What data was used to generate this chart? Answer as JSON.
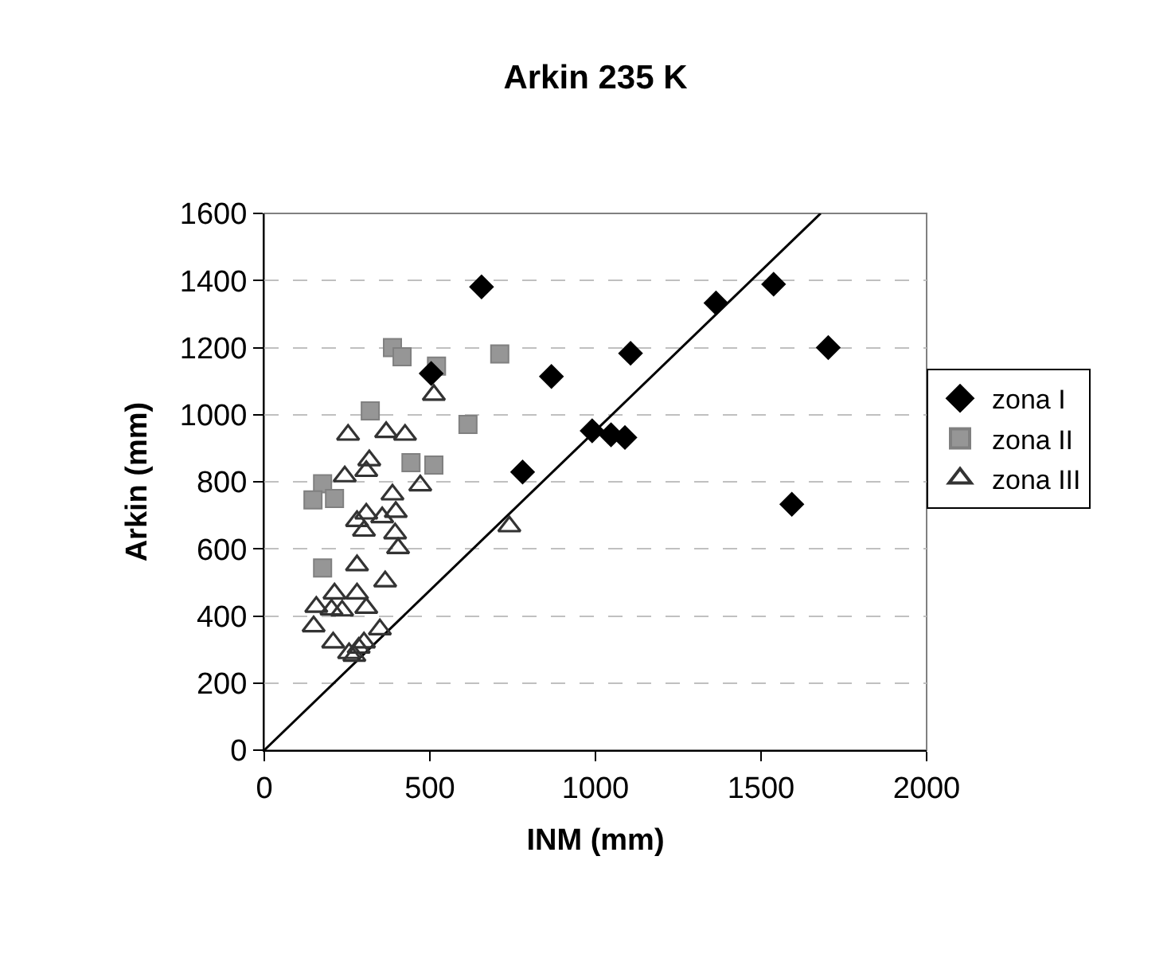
{
  "chart_data": {
    "type": "scatter",
    "title": "Arkin 235 K",
    "xlabel": "INM (mm)",
    "ylabel": "Arkin (mm)",
    "xlim": [
      0,
      2000
    ],
    "xticks": [
      0,
      500,
      1000,
      1500,
      2000
    ],
    "ylim": [
      0,
      1600
    ],
    "yticks": [
      0,
      200,
      400,
      600,
      800,
      1000,
      1200,
      1400,
      1600
    ],
    "grid": "y",
    "legend": "right",
    "series": [
      {
        "name": "zona I",
        "color": "#000000",
        "marker": "diamond",
        "x": [
          867,
          1106,
          990,
          1047,
          1089,
          1364,
          1538,
          1703,
          1593,
          656,
          504,
          780
        ],
        "values": [
          1114,
          1183,
          952,
          940,
          932,
          1333,
          1389,
          1200,
          733,
          1381,
          1123,
          829
        ]
      },
      {
        "name": "zona II",
        "color": "#969696",
        "marker": "square",
        "x": [
          387,
          416,
          520,
          711,
          320,
          615,
          443,
          512,
          176,
          147,
          212,
          176
        ],
        "values": [
          1200,
          1173,
          1145,
          1181,
          1011,
          971,
          857,
          850,
          794,
          746,
          750,
          543
        ]
      },
      {
        "name": "zona III",
        "color": "#333333",
        "marker": "triangle",
        "x": [
          512,
          253,
          368,
          425,
          317,
          308,
          243,
          471,
          387,
          397,
          308,
          356,
          280,
          301,
          395,
          404,
          740,
          280,
          365,
          212,
          280,
          157,
          203,
          235,
          308,
          149,
          349,
          208,
          301,
          285,
          256,
          272
        ],
        "values": [
          1059,
          940,
          948,
          940,
          864,
          832,
          816,
          789,
          762,
          710,
          705,
          694,
          683,
          654,
          646,
          602,
          667,
          551,
          503,
          467,
          467,
          427,
          419,
          416,
          424,
          369,
          360,
          321,
          321,
          305,
          289,
          281
        ]
      },
      {
        "type": "line",
        "color": "#000000",
        "marker": "none",
        "line_style": "solid",
        "x": [
          0,
          1680
        ],
        "values": [
          0,
          1600
        ]
      }
    ]
  }
}
